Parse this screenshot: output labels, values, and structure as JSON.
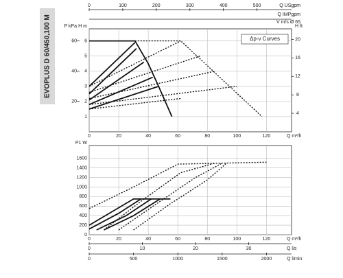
{
  "side_label": "EVOPLUS D 60/450,100 M",
  "chart_data": [
    {
      "type": "line",
      "annotation": "Δp-v Curves",
      "xlabel": "Q m³/h",
      "xlim": [
        0,
        137
      ],
      "xticks": [
        0,
        20,
        40,
        60,
        80,
        100,
        120
      ],
      "x2label": "Q USgpm",
      "x2lim": [
        0,
        603
      ],
      "x2ticks": [
        0,
        100,
        200,
        300,
        400,
        500
      ],
      "x3label": "Q IMPgpm",
      "x4label": "V m/s Ø 65",
      "ylabel": "H m",
      "ylim": [
        0,
        6.8
      ],
      "yticks": [
        1,
        2,
        3,
        4,
        5,
        6
      ],
      "y2label": "P kPa",
      "y2lim": [
        0,
        68
      ],
      "y2ticks": [
        20,
        40,
        60
      ],
      "y3label": "H ft",
      "y3lim": [
        0,
        22.3
      ],
      "y3ticks": [
        4,
        8,
        12,
        16,
        20
      ],
      "grid": true,
      "curves": [
        {
          "style": "solid",
          "x": [
            0,
            31,
            40,
            47,
            56
          ],
          "y": [
            6,
            6,
            4.5,
            3,
            1
          ]
        },
        {
          "style": "solid",
          "x": [
            0,
            31
          ],
          "y": [
            3.0,
            5.9
          ]
        },
        {
          "style": "solid",
          "x": [
            0,
            32
          ],
          "y": [
            2.5,
            5.5
          ]
        },
        {
          "style": "solid",
          "x": [
            0,
            37
          ],
          "y": [
            2.1,
            4.6
          ]
        },
        {
          "style": "solid",
          "x": [
            0,
            43
          ],
          "y": [
            1.8,
            3.6
          ]
        },
        {
          "style": "solid",
          "x": [
            0,
            47
          ],
          "y": [
            1.5,
            3
          ]
        },
        {
          "style": "dotted",
          "x": [
            31,
            62,
            117
          ],
          "y": [
            6,
            6,
            1
          ]
        },
        {
          "style": "dotted",
          "x": [
            0,
            62
          ],
          "y": [
            3.0,
            6
          ]
        },
        {
          "style": "dotted",
          "x": [
            0,
            75
          ],
          "y": [
            2.6,
            5
          ]
        },
        {
          "style": "dotted",
          "x": [
            0,
            85
          ],
          "y": [
            2.2,
            4
          ]
        },
        {
          "style": "dotted",
          "x": [
            0,
            100
          ],
          "y": [
            1.8,
            3
          ]
        },
        {
          "style": "dotted",
          "x": [
            0,
            62
          ],
          "y": [
            1.5,
            2.2
          ]
        }
      ]
    },
    {
      "type": "line",
      "xlabel": "Q m³/h",
      "xlim": [
        0,
        137
      ],
      "xticks": [
        0,
        20,
        40,
        60,
        80,
        100,
        120
      ],
      "x2label": "Q l/s",
      "x2lim": [
        0,
        38.06
      ],
      "x2ticks": [
        0,
        10,
        20,
        30
      ],
      "x3label": "Q l/min",
      "x3lim": [
        0,
        2283
      ],
      "x3ticks": [
        0,
        500,
        1000,
        1500,
        2000
      ],
      "ylabel": "P1 W",
      "ylim": [
        0,
        1870
      ],
      "yticks": [
        0,
        200,
        400,
        600,
        800,
        1000,
        1200,
        1400,
        1600
      ],
      "grid": true,
      "curves": [
        {
          "style": "solid",
          "x": [
            0,
            30,
            55
          ],
          "y": [
            200,
            750,
            750
          ]
        },
        {
          "style": "solid",
          "x": [
            0,
            20,
            35
          ],
          "y": [
            120,
            450,
            750
          ]
        },
        {
          "style": "solid",
          "x": [
            5,
            25,
            42
          ],
          "y": [
            100,
            400,
            750
          ]
        },
        {
          "style": "solid",
          "x": [
            10,
            30,
            48
          ],
          "y": [
            100,
            400,
            750
          ]
        },
        {
          "style": "dotted",
          "x": [
            0,
            30,
            60,
            120
          ],
          "y": [
            550,
            1000,
            1480,
            1520
          ]
        },
        {
          "style": "dotted",
          "x": [
            10,
            35,
            62,
            85
          ],
          "y": [
            100,
            700,
            1300,
            1500
          ]
        },
        {
          "style": "dotted",
          "x": [
            20,
            48,
            72,
            90
          ],
          "y": [
            100,
            700,
            1200,
            1500
          ]
        },
        {
          "style": "dotted",
          "x": [
            30,
            55,
            80,
            93
          ],
          "y": [
            100,
            650,
            1150,
            1500
          ]
        }
      ]
    }
  ]
}
